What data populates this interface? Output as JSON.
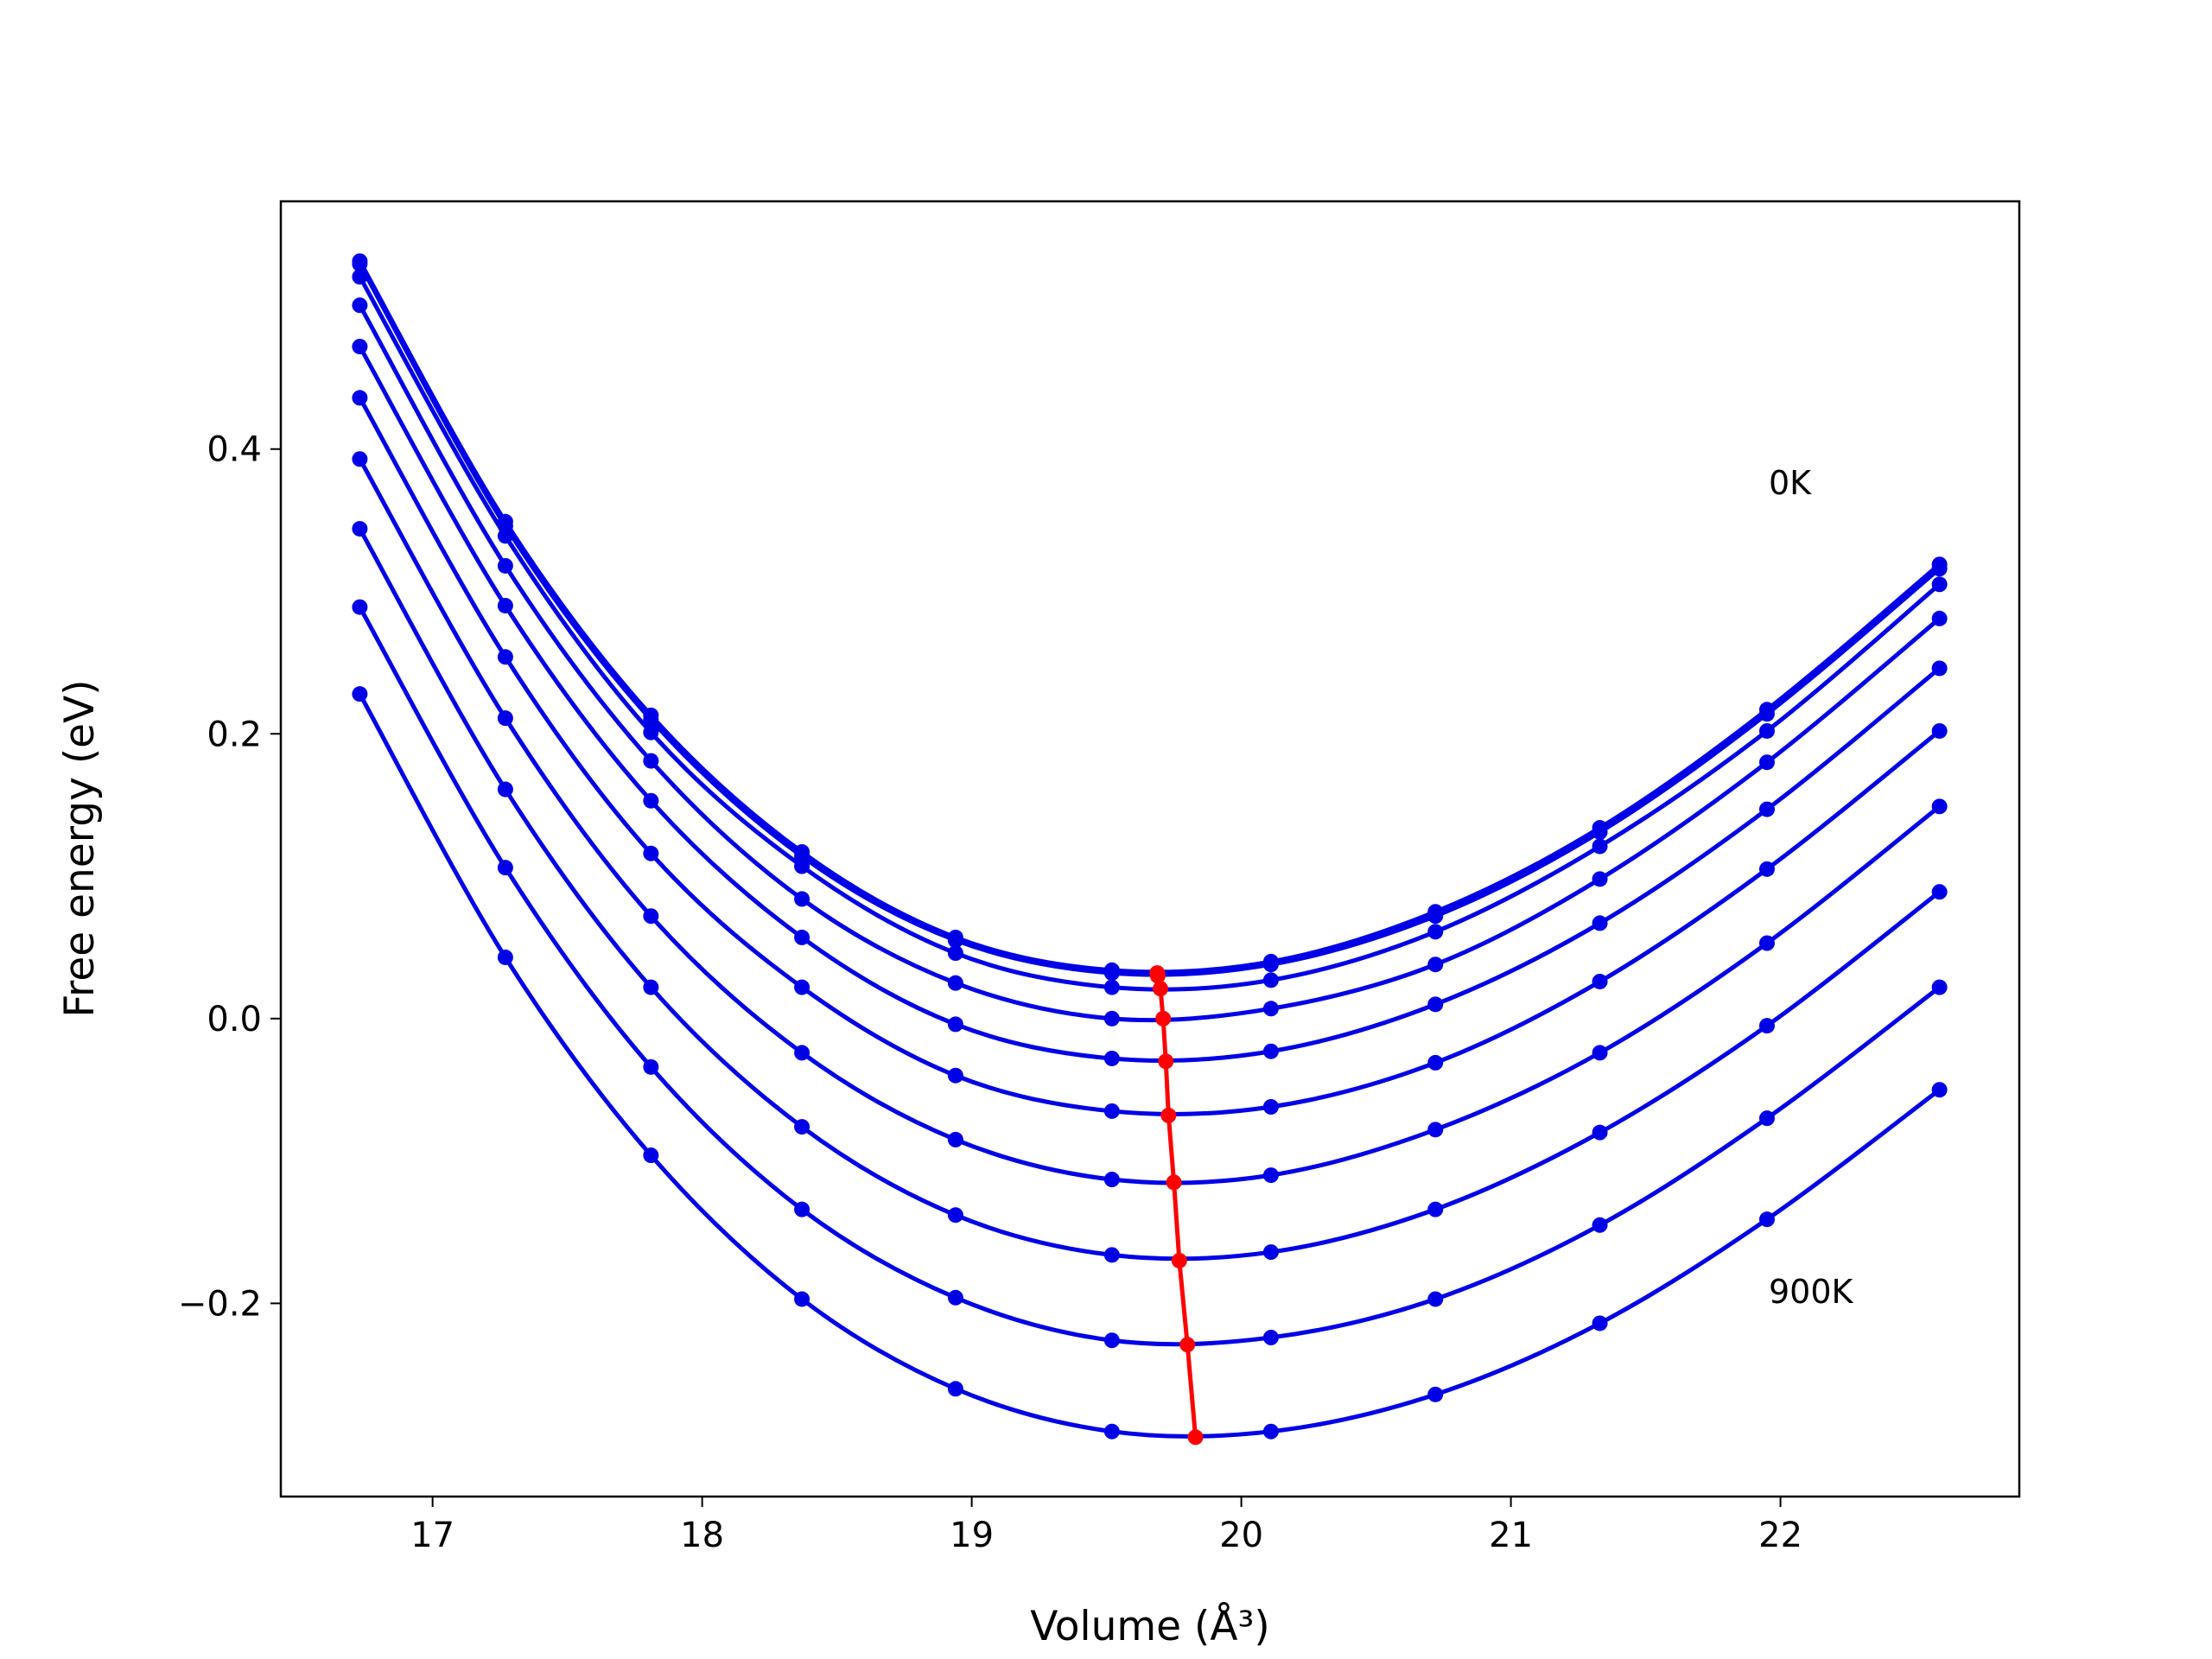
{
  "chart_data": {
    "type": "line",
    "xlabel": "Volume (Å³)",
    "ylabel": "Free energy (eV)",
    "annotations": [
      "0K",
      "900K"
    ],
    "xlim": [
      16.437,
      22.886
    ],
    "ylim": [
      -0.3357,
      0.574
    ],
    "xticks": [
      17,
      18,
      19,
      20,
      21,
      22
    ],
    "yticks": [
      {
        "value": -0.2,
        "label": "−0.2"
      },
      {
        "value": 0,
        "label": "0.0"
      },
      0.2,
      0.4
    ],
    "x": [
      16.73,
      17.27,
      17.81,
      18.37,
      18.94,
      19.52,
      20.11,
      20.72,
      21.33,
      21.95,
      22.59
    ],
    "series": [
      {
        "color": "#0000e6",
        "values": [
          0.532,
          0.349,
          0.213,
          0.117,
          0.057,
          0.034,
          0.04,
          0.075,
          0.134,
          0.217,
          0.319
        ]
      },
      {
        "color": "#0000e6",
        "values": [
          0.53,
          0.346,
          0.21,
          0.114,
          0.055,
          0.032,
          0.038,
          0.072,
          0.131,
          0.214,
          0.316
        ]
      },
      {
        "color": "#0000e6",
        "values": [
          0.521,
          0.339,
          0.201,
          0.107,
          0.046,
          0.022,
          0.027,
          0.061,
          0.121,
          0.202,
          0.305
        ]
      },
      {
        "color": "#0000e6",
        "values": [
          0.501,
          0.318,
          0.181,
          0.084,
          0.025,
          0.0,
          0.007,
          0.038,
          0.098,
          0.18,
          0.281
        ]
      },
      {
        "color": "#0000e6",
        "values": [
          0.472,
          0.29,
          0.153,
          0.057,
          -0.004,
          -0.028,
          -0.023,
          0.01,
          0.067,
          0.147,
          0.246
        ]
      },
      {
        "color": "#0000e6",
        "values": [
          0.436,
          0.254,
          0.116,
          0.022,
          -0.04,
          -0.065,
          -0.062,
          -0.031,
          0.026,
          0.105,
          0.202
        ]
      },
      {
        "color": "#0000e6",
        "values": [
          0.393,
          0.211,
          0.072,
          -0.024,
          -0.085,
          -0.113,
          -0.11,
          -0.078,
          -0.024,
          0.053,
          0.149
        ]
      },
      {
        "color": "#0000e6",
        "values": [
          0.344,
          0.161,
          0.022,
          -0.076,
          -0.138,
          -0.166,
          -0.164,
          -0.134,
          -0.08,
          -0.005,
          0.089
        ]
      },
      {
        "color": "#0000e6",
        "values": [
          0.289,
          0.106,
          -0.034,
          -0.134,
          -0.196,
          -0.226,
          -0.224,
          -0.197,
          -0.145,
          -0.07,
          0.022
        ]
      },
      {
        "color": "#0000e6",
        "values": [
          0.228,
          0.043,
          -0.096,
          -0.197,
          -0.26,
          -0.29,
          -0.29,
          -0.264,
          -0.214,
          -0.141,
          -0.05
        ]
      },
      {
        "color": "#ff0000",
        "smooth": false,
        "x": [
          19.688,
          19.69,
          19.7,
          19.71,
          19.72,
          19.73,
          19.75,
          19.77,
          19.8,
          19.83
        ],
        "values": [
          0.032,
          0.03,
          0.021,
          0.0,
          -0.03,
          -0.068,
          -0.115,
          -0.17,
          -0.229,
          -0.294
        ]
      }
    ]
  }
}
